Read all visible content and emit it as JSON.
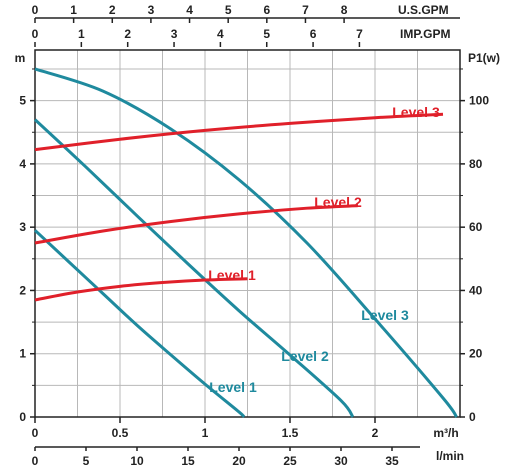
{
  "chart_data": {
    "type": "line",
    "title": "",
    "colors": {
      "head_curves": "#1f8a9e",
      "power_curves": "#e0202a",
      "grid": "#b8b8b8",
      "axis": "#222222"
    },
    "grid": true,
    "axes": {
      "x_flow_m3h": {
        "label": "m³/h",
        "range": [
          0,
          2.5
        ],
        "ticks": [
          0,
          0.5,
          1,
          1.5,
          2
        ]
      },
      "x_flow_lmin": {
        "label": "l/min",
        "range": [
          0,
          41.67
        ],
        "ticks": [
          0,
          5,
          10,
          15,
          20,
          25,
          30,
          35
        ]
      },
      "x_flow_usgpm": {
        "label": "U.S.GPM",
        "range": [
          0,
          11.0
        ],
        "ticks": [
          0,
          1,
          2,
          3,
          4,
          5,
          6,
          7,
          8
        ]
      },
      "x_flow_impgpm": {
        "label": "IMP.GPM",
        "range": [
          0,
          9.17
        ],
        "ticks": [
          0,
          1,
          2,
          3,
          4,
          5,
          6,
          7
        ]
      },
      "y_head": {
        "label": "m",
        "range": [
          0,
          5.8
        ],
        "ticks": [
          0,
          1,
          2,
          3,
          4,
          5
        ]
      },
      "y_power": {
        "label": "P1(w)",
        "range": [
          0,
          116
        ],
        "ticks": [
          0,
          20,
          40,
          60,
          80,
          100
        ]
      }
    },
    "head_series": [
      {
        "name": "Level 1",
        "x_m3h": [
          0,
          0.2,
          0.4,
          0.6,
          0.8,
          1.0,
          1.2,
          1.23
        ],
        "y_m": [
          2.95,
          2.45,
          1.95,
          1.45,
          0.98,
          0.52,
          0.08,
          0
        ]
      },
      {
        "name": "Level 2",
        "x_m3h": [
          0,
          0.3,
          0.6,
          0.9,
          1.2,
          1.5,
          1.8,
          1.87
        ],
        "y_m": [
          4.7,
          3.95,
          3.18,
          2.42,
          1.68,
          0.98,
          0.26,
          0
        ]
      },
      {
        "name": "Level 3",
        "x_m3h": [
          0,
          0.4,
          0.8,
          1.2,
          1.6,
          2.0,
          2.4,
          2.48
        ],
        "y_m": [
          5.5,
          5.15,
          4.55,
          3.75,
          2.75,
          1.55,
          0.3,
          0
        ]
      }
    ],
    "power_series": [
      {
        "name": "Level 1",
        "x_m3h": [
          0,
          0.25,
          0.5,
          0.75,
          1.0,
          1.25
        ],
        "y_w": [
          37,
          39.5,
          41.3,
          42.5,
          43.3,
          43.7
        ]
      },
      {
        "name": "Level 2",
        "x_m3h": [
          0,
          0.4,
          0.8,
          1.2,
          1.6,
          1.9
        ],
        "y_w": [
          55,
          58.8,
          61.8,
          64.2,
          66.0,
          66.8
        ]
      },
      {
        "name": "Level 3",
        "x_m3h": [
          0,
          0.5,
          1.0,
          1.5,
          2.0,
          2.4
        ],
        "y_w": [
          84.5,
          87.8,
          90.6,
          92.8,
          94.6,
          95.7
        ]
      }
    ]
  }
}
